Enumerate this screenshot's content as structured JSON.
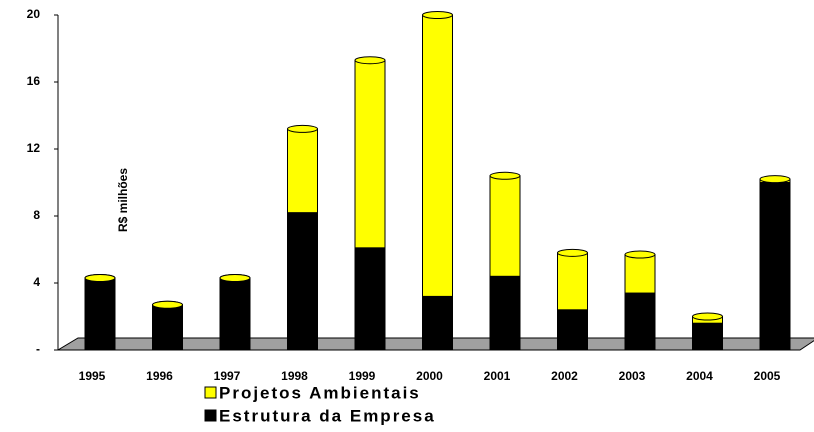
{
  "chart_data": {
    "type": "bar",
    "stacked": true,
    "y_label": "R$ milhões",
    "categories": [
      "1995",
      "1996",
      "1997",
      "1998",
      "1999",
      "2000",
      "2001",
      "2002",
      "2003",
      "2004",
      "2005"
    ],
    "series": [
      {
        "name": "Projetos Ambientais",
        "color": "#ffff00",
        "values": [
          0,
          0,
          0,
          5.0,
          11.2,
          16.8,
          6.0,
          3.4,
          2.3,
          0.4,
          0.2
        ]
      },
      {
        "name": "Estrutura da Empresa",
        "color": "#000000",
        "values": [
          4.3,
          2.7,
          4.3,
          8.2,
          6.1,
          3.2,
          4.4,
          2.4,
          3.4,
          1.6,
          10.0
        ]
      }
    ],
    "ylim": [
      0,
      20
    ],
    "yticks": [
      {
        "value": 0,
        "label": "-"
      },
      4,
      8,
      12,
      16,
      20
    ]
  }
}
